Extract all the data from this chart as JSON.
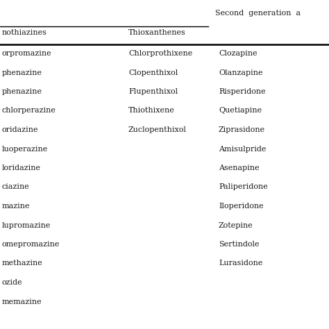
{
  "header_top": "Second  generation  a",
  "header_col1": "nothiazines",
  "header_col2": "Thioxanthenes",
  "col1": [
    "orpromazine",
    "phenazine",
    "phenazine",
    "chlorperazine",
    "oridazine",
    "luoperazine",
    "loridazine",
    "ciazine",
    "mazine",
    "lupromazine",
    "omepromazine",
    "methazine",
    "ozide",
    "memazine"
  ],
  "col2": [
    "Chlorprothixene",
    "Clopenthixol",
    "Flupenthixol",
    "Thiothixene",
    "Zuclopenthixol",
    "",
    "",
    "",
    "",
    "",
    "",
    "",
    "",
    ""
  ],
  "col3": [
    "Clozapine",
    "Olanzapine",
    "Risperidone",
    "Quetiapine",
    "Ziprasidone",
    "Amisulpride",
    "Asenapine",
    "Paliperidone",
    "Iloperidone",
    "Zotepine",
    "Sertindole",
    "Lurasidone",
    "",
    ""
  ],
  "bg_color": "#ffffff",
  "text_color": "#1a1a1a",
  "line_color": "#000000",
  "font_size": 8.0,
  "header_font_size": 8.0
}
